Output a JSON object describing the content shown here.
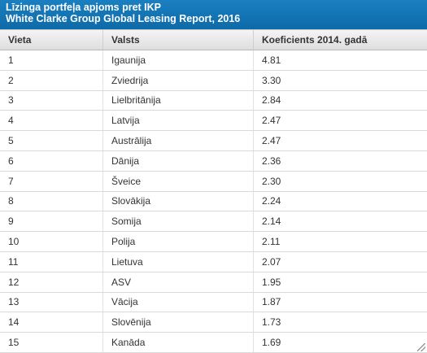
{
  "title": {
    "line1": "Līzinga portfeļa apjoms pret IKP",
    "line2": "White Clarke Group Global Leasing Report, 2016"
  },
  "table": {
    "headers": [
      "Vieta",
      "Valsts",
      "Koeficients 2014. gadā"
    ],
    "rows": [
      [
        "1",
        "Igaunija",
        "4.81"
      ],
      [
        "2",
        "Zviedrija",
        "3.30"
      ],
      [
        "3",
        "Lielbritānija",
        "2.84"
      ],
      [
        "4",
        "Latvija",
        "2.47"
      ],
      [
        "5",
        "Austrālija",
        "2.47"
      ],
      [
        "6",
        "Dānija",
        "2.36"
      ],
      [
        "7",
        "Šveice",
        "2.30"
      ],
      [
        "8",
        "Slovākija",
        "2.24"
      ],
      [
        "9",
        "Somija",
        "2.14"
      ],
      [
        "10",
        "Polija",
        "2.11"
      ],
      [
        "11",
        "Lietuva",
        "2.07"
      ],
      [
        "12",
        "ASV",
        "1.95"
      ],
      [
        "13",
        "Vācija",
        "1.87"
      ],
      [
        "14",
        "Slovēnija",
        "1.73"
      ],
      [
        "15",
        "Kanāda",
        "1.69"
      ]
    ]
  },
  "colors": {
    "title_bar": "#1276b6",
    "header_bg": "#e8e8e8",
    "row_border": "#d9d9d9"
  }
}
